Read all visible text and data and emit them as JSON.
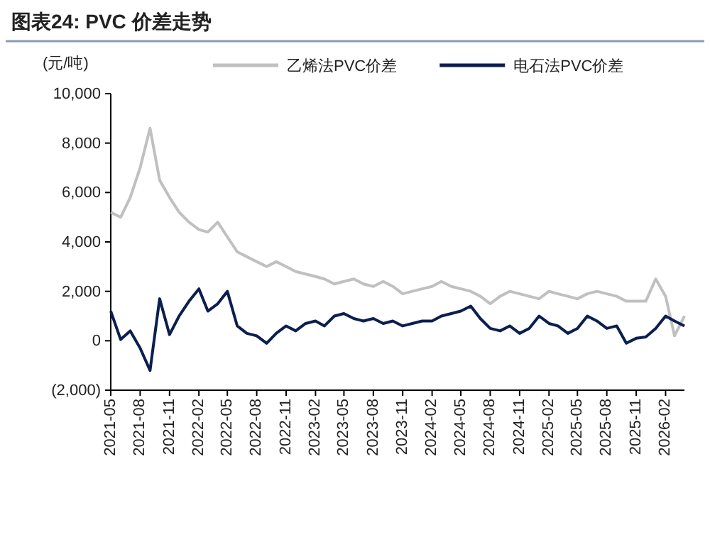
{
  "chart_data": {
    "type": "line",
    "title": "图表24:  PVC 价差走势",
    "ylabel": "(元/吨)",
    "xlim": [
      "2021-05",
      "2026-04"
    ],
    "xticks": [
      "2021-05",
      "2021-08",
      "2021-11",
      "2022-02",
      "2022-05",
      "2022-08",
      "2022-11",
      "2023-02",
      "2023-05",
      "2023-08",
      "2023-11",
      "2024-02",
      "2024-05",
      "2024-08",
      "2024-11",
      "2025-02",
      "2025-05",
      "2025-08",
      "2025-11",
      "2026-02"
    ],
    "ylim": [
      -2000,
      10000
    ],
    "yticks": [
      {
        "value": -2000,
        "label": "(2,000)"
      },
      0,
      {
        "value": 2000,
        "label": "2,000"
      },
      {
        "value": 4000,
        "label": "4,000"
      },
      {
        "value": 6000,
        "label": "6,000"
      },
      {
        "value": 8000,
        "label": "8,000"
      },
      {
        "value": 10000,
        "label": "10,000"
      }
    ],
    "grid": false,
    "legend": "top",
    "line_style": "solid",
    "marker": "none",
    "series": [
      {
        "name": "乙烯法PVC价差",
        "color": "#c0c0c0",
        "x": [
          "2021-05",
          "2021-06",
          "2021-07",
          "2021-08",
          "2021-09",
          "2021-10",
          "2021-11",
          "2021-12",
          "2022-01",
          "2022-02",
          "2022-03",
          "2022-04",
          "2022-05",
          "2022-06",
          "2022-07",
          "2022-08",
          "2022-09",
          "2022-10",
          "2022-11",
          "2022-12",
          "2023-01",
          "2023-02",
          "2023-03",
          "2023-04",
          "2023-05",
          "2023-06",
          "2023-07",
          "2023-08",
          "2023-09",
          "2023-10",
          "2023-11",
          "2023-12",
          "2024-01",
          "2024-02",
          "2024-03",
          "2024-04",
          "2024-05",
          "2024-06",
          "2024-07",
          "2024-08",
          "2024-09",
          "2024-10",
          "2024-11",
          "2024-12",
          "2025-01",
          "2025-02",
          "2025-03",
          "2025-04",
          "2025-05",
          "2025-06",
          "2025-07",
          "2025-08",
          "2025-09",
          "2025-10",
          "2025-11",
          "2025-12",
          "2026-01",
          "2026-02",
          "2026-03",
          "2026-04"
        ],
        "values": [
          5200,
          5000,
          5800,
          7000,
          8600,
          6500,
          5800,
          5200,
          4800,
          4500,
          4400,
          4800,
          4200,
          3600,
          3400,
          3200,
          3000,
          3200,
          3000,
          2800,
          2700,
          2600,
          2500,
          2300,
          2400,
          2500,
          2300,
          2200,
          2400,
          2200,
          1900,
          2000,
          2100,
          2200,
          2400,
          2200,
          2100,
          2000,
          1800,
          1500,
          1800,
          2000,
          1900,
          1800,
          1700,
          2000,
          1900,
          1800,
          1700,
          1900,
          2000,
          1900,
          1800,
          1600,
          1600,
          1600,
          2500,
          1800,
          200,
          1000
        ]
      },
      {
        "name": "电石法PVC价差",
        "color": "#0b1f4f",
        "x": [
          "2021-05",
          "2021-06",
          "2021-07",
          "2021-08",
          "2021-09",
          "2021-10",
          "2021-11",
          "2021-12",
          "2022-01",
          "2022-02",
          "2022-03",
          "2022-04",
          "2022-05",
          "2022-06",
          "2022-07",
          "2022-08",
          "2022-09",
          "2022-10",
          "2022-11",
          "2022-12",
          "2023-01",
          "2023-02",
          "2023-03",
          "2023-04",
          "2023-05",
          "2023-06",
          "2023-07",
          "2023-08",
          "2023-09",
          "2023-10",
          "2023-11",
          "2023-12",
          "2024-01",
          "2024-02",
          "2024-03",
          "2024-04",
          "2024-05",
          "2024-06",
          "2024-07",
          "2024-08",
          "2024-09",
          "2024-10",
          "2024-11",
          "2024-12",
          "2025-01",
          "2025-02",
          "2025-03",
          "2025-04",
          "2025-05",
          "2025-06",
          "2025-07",
          "2025-08",
          "2025-09",
          "2025-10",
          "2025-11",
          "2025-12",
          "2026-01",
          "2026-02",
          "2026-03",
          "2026-04"
        ],
        "values": [
          1200,
          50,
          400,
          -300,
          -1200,
          1700,
          250,
          1000,
          1600,
          2100,
          1200,
          1500,
          2000,
          600,
          300,
          200,
          -100,
          300,
          600,
          400,
          700,
          800,
          600,
          1000,
          1100,
          900,
          800,
          900,
          700,
          800,
          600,
          700,
          800,
          800,
          1000,
          1100,
          1200,
          1400,
          900,
          500,
          400,
          600,
          300,
          500,
          1000,
          700,
          600,
          300,
          500,
          1000,
          800,
          500,
          600,
          -100,
          100,
          150,
          500,
          1000,
          800,
          600
        ]
      }
    ]
  }
}
